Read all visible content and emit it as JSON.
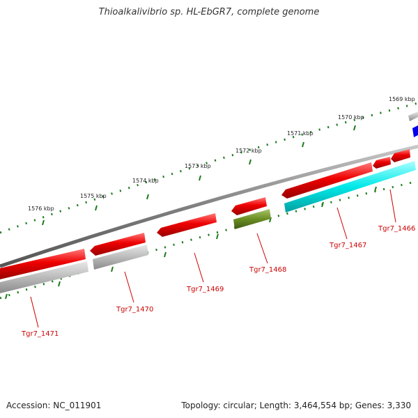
{
  "title": "Thioalkalivibrio sp. HL-EbGR7, complete genome",
  "accession": "Accession: NC_011901",
  "summary": "Topology: circular; Length: 3,464,554 bp; Genes: 3,330",
  "scale_labels": [
    "1569 kbp",
    "1570 kbp",
    "1571 kbp",
    "1572 kbp",
    "1573 kbp",
    "1574 kbp",
    "1575 kbp",
    "1576 kbp"
  ],
  "gene_labels": [
    "Tgr7_1466",
    "Tgr7_1467",
    "Tgr7_1468",
    "Tgr7_1469",
    "Tgr7_1470",
    "Tgr7_1471"
  ],
  "colors": {
    "backbone": "#808080",
    "gene_red": "#ee0000",
    "gene_gray": "#bbbbbb",
    "gene_cyan": "#00e8e8",
    "gene_olive": "#6b8e23",
    "gene_blue": "#0000ee",
    "tick": "#1a7a1a",
    "label": "#cc0000"
  }
}
